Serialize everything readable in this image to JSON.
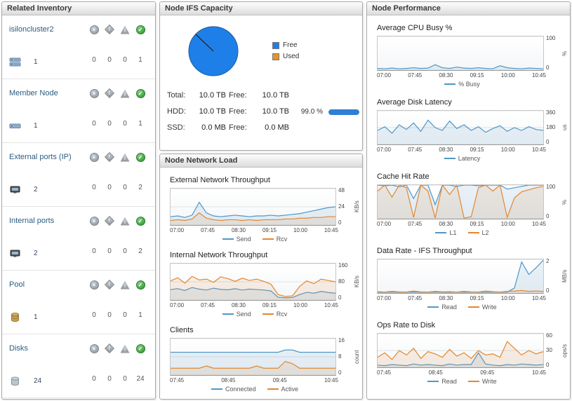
{
  "panels": {
    "inventory": {
      "title": "Related Inventory",
      "status_columns": [
        {
          "name": "fatal",
          "color": "#8d949c"
        },
        {
          "name": "critical",
          "color": "#8d949c"
        },
        {
          "name": "warning",
          "color": "#8d949c"
        },
        {
          "name": "normal",
          "color": "#2e8f2e"
        }
      ],
      "rows": [
        {
          "label": "isiloncluster2",
          "icon": "cluster-icon",
          "count": "1",
          "statuses": [
            "0",
            "0",
            "0",
            "1"
          ]
        },
        {
          "label": "Member Node",
          "icon": "member-node-icon",
          "count": "1",
          "statuses": [
            "0",
            "0",
            "0",
            "1"
          ]
        },
        {
          "label": "External ports (IP)",
          "icon": "external-port-icon",
          "count": "2",
          "statuses": [
            "0",
            "0",
            "0",
            "2"
          ]
        },
        {
          "label": "Internal ports",
          "icon": "internal-port-icon",
          "count": "2",
          "statuses": [
            "0",
            "0",
            "0",
            "2"
          ]
        },
        {
          "label": "Pool",
          "icon": "pool-icon",
          "count": "1",
          "statuses": [
            "0",
            "0",
            "0",
            "1"
          ]
        },
        {
          "label": "Disks",
          "icon": "disk-icon",
          "count": "24",
          "statuses": [
            "0",
            "0",
            "0",
            "24"
          ]
        }
      ]
    },
    "capacity": {
      "title": "Node IFS Capacity",
      "legend": [
        {
          "label": "Free",
          "color": "#1f7fe8"
        },
        {
          "label": "Used",
          "color": "#e8922d"
        }
      ],
      "rows": [
        {
          "label": "Total:",
          "value": "10.0 TB",
          "free_label": "Free:",
          "free_value": "10.0 TB",
          "percent": ""
        },
        {
          "label": "HDD:",
          "value": "10.0 TB",
          "free_label": "Free:",
          "free_value": "10.0 TB",
          "percent": "99.0 %",
          "bar_percent": 99,
          "bar_color": "#2f7fd4"
        },
        {
          "label": "SSD:",
          "value": "0.0 MB",
          "free_label": "Free:",
          "free_value": "0.0 MB",
          "percent": ""
        }
      ]
    },
    "network_load": {
      "title": "Node Network Load",
      "chart_ids": [
        0,
        1,
        2
      ]
    },
    "performance": {
      "title": "Node Performance",
      "chart_ids": [
        3,
        4,
        5,
        6,
        7
      ]
    }
  },
  "chart_data": [
    {
      "id": "external-network-throughput",
      "type": "line",
      "title": "External Network Throughput",
      "ylabel": "KB/s",
      "ylim": [
        0,
        48
      ],
      "yticks": [
        48,
        24,
        0
      ],
      "x": [
        "07:00",
        "07:45",
        "08:30",
        "09:15",
        "10:00",
        "10:45"
      ],
      "series": [
        {
          "name": "Send",
          "color": "#4f97c6",
          "values": [
            11,
            12,
            10,
            13,
            30,
            16,
            12,
            11,
            12,
            13,
            12,
            11,
            12,
            12,
            13,
            12,
            13,
            14,
            15,
            17,
            19,
            21,
            23,
            24
          ]
        },
        {
          "name": "Rcv",
          "color": "#e2872f",
          "values": [
            6,
            7,
            6,
            8,
            16,
            9,
            7,
            6,
            7,
            7,
            6,
            7,
            6,
            7,
            7,
            7,
            8,
            8,
            9,
            9,
            10,
            10,
            11,
            11
          ]
        }
      ]
    },
    {
      "id": "internal-network-throughput",
      "type": "line",
      "title": "Internal Network Throughput",
      "ylabel": "KB/s",
      "ylim": [
        0,
        160
      ],
      "yticks": [
        160,
        80,
        0
      ],
      "x": [
        "07:00",
        "07:45",
        "08:30",
        "09:15",
        "10:00",
        "10:45"
      ],
      "series": [
        {
          "name": "Send",
          "color": "#4f97c6",
          "values": [
            46,
            50,
            42,
            55,
            48,
            44,
            52,
            47,
            45,
            50,
            44,
            48,
            46,
            44,
            40,
            12,
            10,
            11,
            24,
            34,
            30,
            38,
            33,
            30
          ]
        },
        {
          "name": "Rcv",
          "color": "#e2872f",
          "values": [
            84,
            98,
            74,
            104,
            88,
            92,
            78,
            102,
            94,
            82,
            96,
            86,
            92,
            82,
            70,
            24,
            16,
            18,
            60,
            84,
            72,
            92,
            86,
            80
          ]
        }
      ]
    },
    {
      "id": "clients",
      "type": "line",
      "title": "Clients",
      "ylabel": "count",
      "ylim": [
        0,
        16
      ],
      "yticks": [
        16,
        8,
        0
      ],
      "x": [
        "07:45",
        "08:45",
        "09:45",
        "10:45"
      ],
      "series": [
        {
          "name": "Connected",
          "color": "#4f97c6",
          "values": [
            10,
            10,
            10,
            10,
            10,
            10,
            10,
            10,
            10,
            10,
            10,
            10,
            10,
            10,
            10,
            10,
            11,
            11,
            10,
            10,
            10,
            10,
            10,
            10
          ]
        },
        {
          "name": "Active",
          "color": "#e2872f",
          "values": [
            3,
            3,
            3,
            3,
            3,
            4,
            3,
            3,
            3,
            3,
            3,
            3,
            4,
            3,
            3,
            3,
            6,
            5,
            3,
            3,
            3,
            3,
            3,
            3
          ]
        }
      ]
    },
    {
      "id": "average-cpu-busy",
      "type": "line",
      "title": "Average CPU Busy %",
      "ylabel": "%",
      "ylim": [
        0,
        100
      ],
      "yticks": [
        100,
        0
      ],
      "x": [
        "07:00",
        "07:45",
        "08:30",
        "09:15",
        "10:00",
        "10:45"
      ],
      "series": [
        {
          "name": "% Busy",
          "color": "#4f97c6",
          "values": [
            5,
            4,
            6,
            4,
            5,
            7,
            5,
            6,
            16,
            7,
            5,
            9,
            6,
            5,
            7,
            5,
            4,
            13,
            7,
            5,
            4,
            6,
            5,
            4
          ]
        }
      ]
    },
    {
      "id": "average-disk-latency",
      "type": "line",
      "title": "Average Disk Latency",
      "ylabel": "us",
      "ylim": [
        0,
        360
      ],
      "yticks": [
        360,
        180,
        0
      ],
      "x": [
        "07:00",
        "07:45",
        "08:30",
        "09:15",
        "10:00",
        "10:45"
      ],
      "series": [
        {
          "name": "Latency",
          "color": "#4f97c6",
          "values": [
            150,
            190,
            120,
            210,
            160,
            230,
            140,
            260,
            180,
            150,
            250,
            170,
            210,
            150,
            190,
            130,
            170,
            200,
            140,
            180,
            150,
            190,
            160,
            150
          ]
        }
      ]
    },
    {
      "id": "cache-hit-rate",
      "type": "line",
      "title": "Cache Hit Rate",
      "ylabel": "%",
      "ylim": [
        0,
        100
      ],
      "yticks": [
        100,
        0
      ],
      "x": [
        "07:00",
        "07:45",
        "08:30",
        "09:15",
        "10:00",
        "10:45"
      ],
      "series": [
        {
          "name": "L1",
          "color": "#4f97c6",
          "values": [
            100,
            98,
            100,
            95,
            100,
            60,
            100,
            100,
            42,
            100,
            100,
            96,
            100,
            100,
            98,
            100,
            100,
            100,
            88,
            92,
            96,
            100,
            100,
            100
          ]
        },
        {
          "name": "L2",
          "color": "#e2872f",
          "values": [
            82,
            100,
            64,
            100,
            92,
            4,
            100,
            82,
            2,
            100,
            72,
            100,
            2,
            6,
            92,
            100,
            82,
            100,
            4,
            62,
            80,
            86,
            92,
            96
          ]
        }
      ]
    },
    {
      "id": "data-rate-ifs-throughput",
      "type": "line",
      "title": "Data Rate - IFS Throughput",
      "ylabel": "MB/s",
      "ylim": [
        0,
        2
      ],
      "yticks": [
        2,
        0
      ],
      "x": [
        "07:00",
        "07:45",
        "08:30",
        "09:15",
        "10:00",
        "10:45"
      ],
      "series": [
        {
          "name": "Read",
          "color": "#4f97c6",
          "values": [
            0.05,
            0.05,
            0.06,
            0.05,
            0.05,
            0.06,
            0.05,
            0.05,
            0.06,
            0.05,
            0.05,
            0.06,
            0.05,
            0.06,
            0.05,
            0.05,
            0.06,
            0.05,
            0.06,
            0.3,
            1.85,
            1.1,
            1.5,
            1.95
          ]
        },
        {
          "name": "Write",
          "color": "#e2872f",
          "values": [
            0.08,
            0.06,
            0.1,
            0.07,
            0.06,
            0.12,
            0.07,
            0.06,
            0.1,
            0.07,
            0.08,
            0.06,
            0.1,
            0.07,
            0.06,
            0.12,
            0.08,
            0.06,
            0.1,
            0.12,
            0.15,
            0.1,
            0.12,
            0.1
          ]
        }
      ]
    },
    {
      "id": "ops-rate-to-disk",
      "type": "line",
      "title": "Ops Rate to Disk",
      "ylabel": "ops/s",
      "ylim": [
        0,
        60
      ],
      "yticks": [
        60,
        30,
        0
      ],
      "x": [
        "07:45",
        "08:45",
        "09:45",
        "10:45"
      ],
      "series": [
        {
          "name": "Read",
          "color": "#4f97c6",
          "values": [
            4,
            3,
            5,
            4,
            3,
            6,
            4,
            5,
            4,
            3,
            6,
            4,
            5,
            5,
            26,
            6,
            4,
            3,
            5,
            4,
            6,
            5,
            4,
            5
          ]
        },
        {
          "name": "Write",
          "color": "#e2872f",
          "values": [
            18,
            26,
            14,
            30,
            22,
            34,
            16,
            28,
            24,
            18,
            32,
            20,
            26,
            16,
            30,
            22,
            24,
            18,
            46,
            34,
            22,
            30,
            24,
            28
          ]
        }
      ]
    },
    {
      "id": "node-ifs-capacity-pie",
      "type": "pie",
      "title": "Node IFS Capacity",
      "labels": [
        "Free",
        "Used"
      ],
      "values": [
        99,
        1
      ],
      "colors": [
        "#1f7fe8",
        "#e8922d"
      ]
    }
  ]
}
